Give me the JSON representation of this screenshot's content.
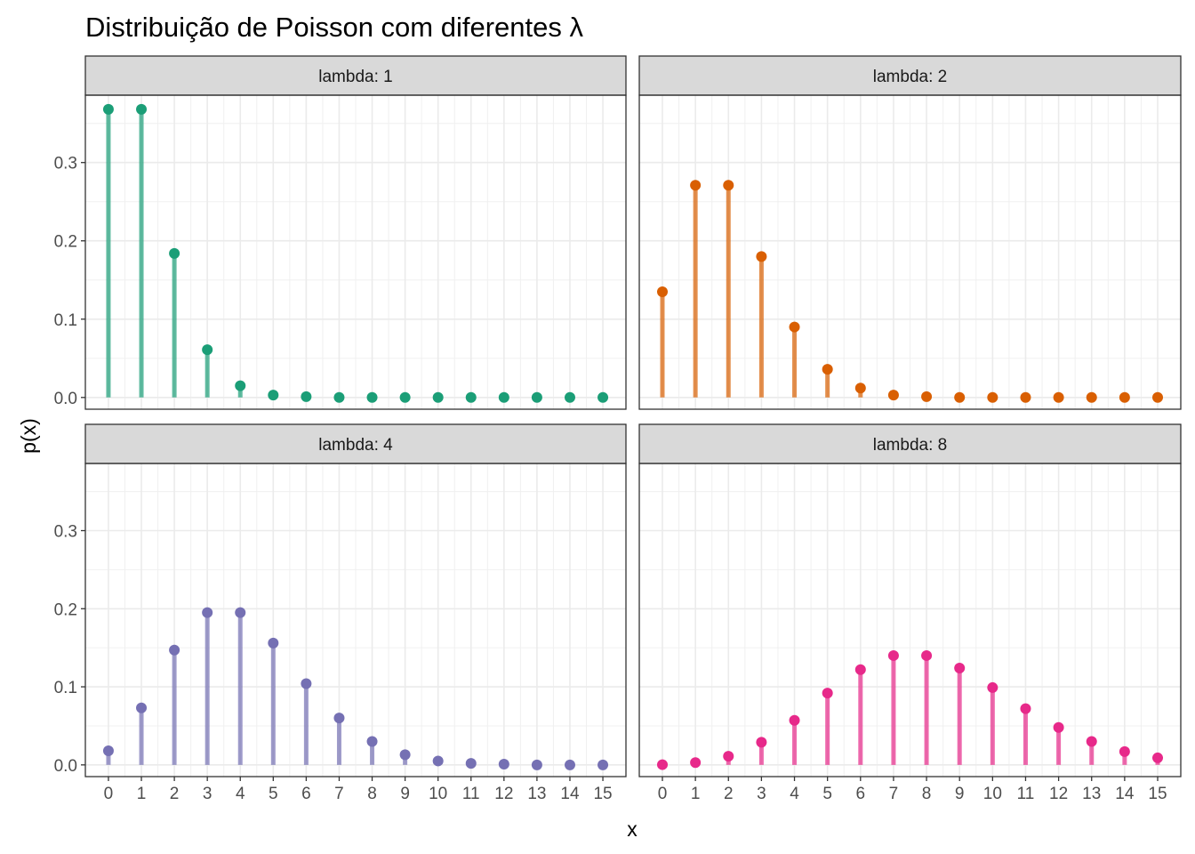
{
  "chart_data": {
    "type": "lollipop",
    "title": "Distribuição de Poisson com diferentes λ",
    "xlabel": "x",
    "ylabel": "p(x)",
    "x": [
      0,
      1,
      2,
      3,
      4,
      5,
      6,
      7,
      8,
      9,
      10,
      11,
      12,
      13,
      14,
      15
    ],
    "x_tick_labels": [
      "0",
      "1",
      "2",
      "3",
      "4",
      "5",
      "6",
      "7",
      "8",
      "9",
      "10",
      "11",
      "12",
      "13",
      "14",
      "15"
    ],
    "y_ticks": [
      0.0,
      0.1,
      0.2,
      0.3
    ],
    "y_tick_labels": [
      "0.0",
      "0.1",
      "0.2",
      "0.3"
    ],
    "ylim": [
      -0.015,
      0.386
    ],
    "xlim": [
      -0.7,
      15.7
    ],
    "grid": true,
    "legend": "none",
    "panels": [
      {
        "strip": "lambda: 1",
        "color": "#1b9e77",
        "values": [
          0.368,
          0.368,
          0.184,
          0.061,
          0.015,
          0.003,
          0.001,
          0.0,
          0.0,
          0.0,
          0.0,
          0.0,
          0.0,
          0.0,
          0.0,
          0.0
        ]
      },
      {
        "strip": "lambda: 2",
        "color": "#d95f02",
        "values": [
          0.135,
          0.271,
          0.271,
          0.18,
          0.09,
          0.036,
          0.012,
          0.003,
          0.001,
          0.0,
          0.0,
          0.0,
          0.0,
          0.0,
          0.0,
          0.0
        ]
      },
      {
        "strip": "lambda: 4",
        "color": "#7570b3",
        "values": [
          0.018,
          0.073,
          0.147,
          0.195,
          0.195,
          0.156,
          0.104,
          0.06,
          0.03,
          0.013,
          0.005,
          0.002,
          0.001,
          0.0,
          0.0,
          0.0
        ]
      },
      {
        "strip": "lambda: 8",
        "color": "#e7298a",
        "values": [
          0.0003,
          0.003,
          0.011,
          0.029,
          0.057,
          0.092,
          0.122,
          0.14,
          0.14,
          0.124,
          0.099,
          0.072,
          0.048,
          0.03,
          0.017,
          0.009
        ]
      }
    ]
  }
}
